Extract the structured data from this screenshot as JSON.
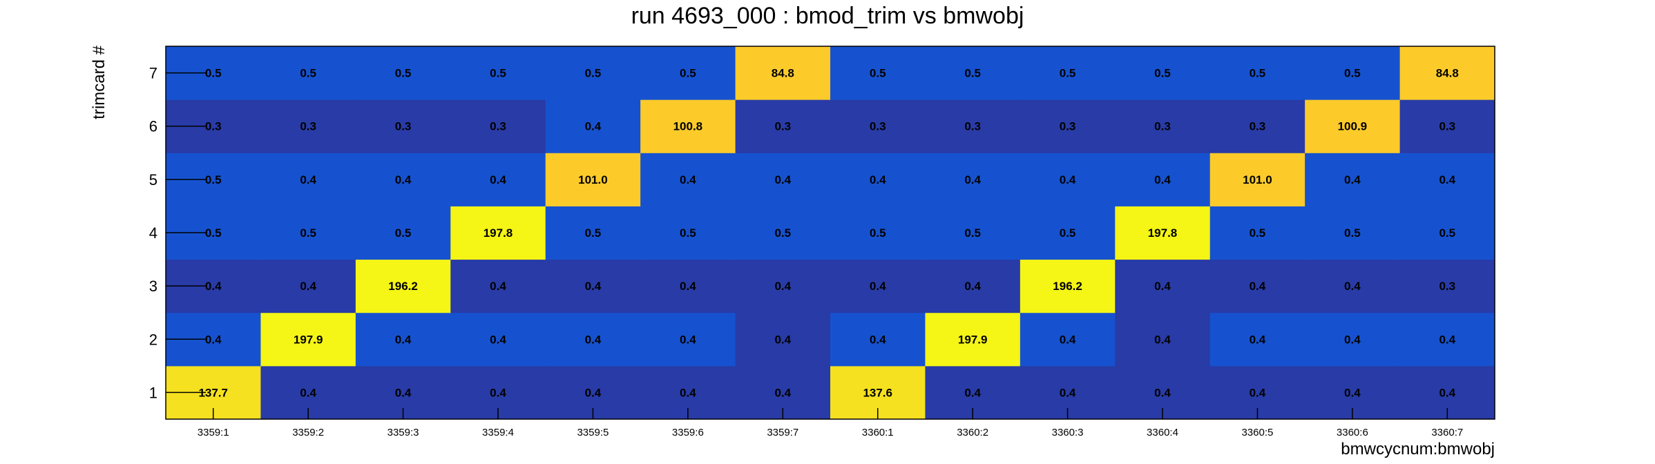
{
  "chart_data": {
    "type": "heatmap",
    "title": "run 4693_000 : bmod_trim vs bmwobj",
    "xlabel": "bmwcycnum:bmwobj",
    "ylabel": "trimcard #",
    "x_categories": [
      "3359:1",
      "3359:2",
      "3359:3",
      "3359:4",
      "3359:5",
      "3359:6",
      "3359:7",
      "3360:1",
      "3360:2",
      "3360:3",
      "3360:4",
      "3360:5",
      "3360:6",
      "3360:7"
    ],
    "y_categories": [
      "1",
      "2",
      "3",
      "4",
      "5",
      "6",
      "7"
    ],
    "values": [
      [
        137.7,
        0.4,
        0.4,
        0.4,
        0.4,
        0.4,
        0.4,
        137.6,
        0.4,
        0.4,
        0.4,
        0.4,
        0.4,
        0.4
      ],
      [
        0.4,
        197.9,
        0.4,
        0.4,
        0.4,
        0.4,
        0.4,
        0.4,
        197.9,
        0.4,
        0.4,
        0.4,
        0.4,
        0.4
      ],
      [
        0.4,
        0.4,
        196.2,
        0.4,
        0.4,
        0.4,
        0.4,
        0.4,
        0.4,
        196.2,
        0.4,
        0.4,
        0.4,
        0.3
      ],
      [
        0.5,
        0.5,
        0.5,
        197.8,
        0.5,
        0.5,
        0.5,
        0.5,
        0.5,
        0.5,
        197.8,
        0.5,
        0.5,
        0.5
      ],
      [
        0.5,
        0.4,
        0.4,
        0.4,
        101.0,
        0.4,
        0.4,
        0.4,
        0.4,
        0.4,
        0.4,
        101.0,
        0.4,
        0.4
      ],
      [
        0.3,
        0.3,
        0.3,
        0.3,
        0.4,
        100.8,
        0.3,
        0.3,
        0.3,
        0.3,
        0.3,
        0.3,
        100.9,
        0.3
      ],
      [
        0.5,
        0.5,
        0.5,
        0.5,
        0.5,
        0.5,
        84.8,
        0.5,
        0.5,
        0.5,
        0.5,
        0.5,
        0.5,
        84.8
      ]
    ],
    "value_format": "one-decimal",
    "grid": false,
    "colors": {
      "dark_blue": "#283ba6",
      "blue": "#1652cf",
      "gold": "#fccb2a",
      "yellow_gold": "#f5e11f",
      "yellow": "#f5f516"
    }
  }
}
